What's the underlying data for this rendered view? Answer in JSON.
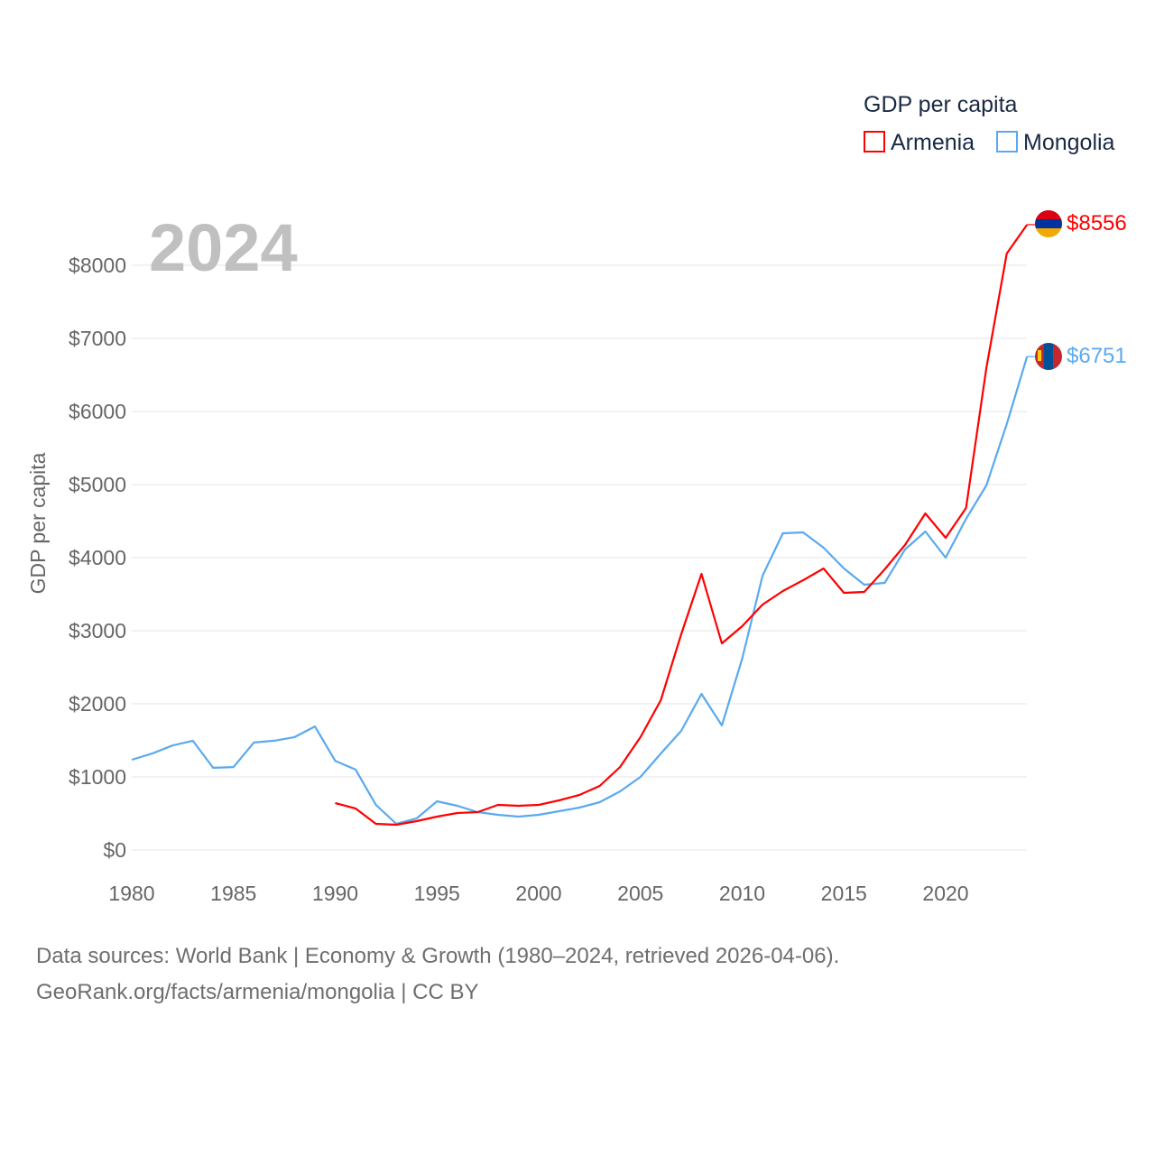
{
  "chart_data": {
    "type": "line",
    "title": "GDP per capita",
    "ylabel": "GDP per capita",
    "xlabel": "",
    "year_label": "2024",
    "xlim": [
      1980,
      2024
    ],
    "ylim": [
      0,
      8800
    ],
    "x_ticks": [
      1980,
      1985,
      1990,
      1995,
      2000,
      2005,
      2010,
      2015,
      2020
    ],
    "y_ticks": [
      0,
      1000,
      2000,
      3000,
      4000,
      5000,
      6000,
      7000,
      8000
    ],
    "y_tick_labels": [
      "$0",
      "$1000",
      "$2000",
      "$3000",
      "$4000",
      "$5000",
      "$6000",
      "$7000",
      "$8000"
    ],
    "legend_placement": "top-right",
    "grid": true,
    "series": [
      {
        "name": "Armenia",
        "color": "#ff0000",
        "end_label": "$8556",
        "start_year": 1990,
        "values": [
          642,
          568,
          358,
          346,
          395,
          457,
          506,
          518,
          617,
          605,
          617,
          679,
          753,
          877,
          1136,
          1545,
          2050,
          2951,
          3778,
          2827,
          3062,
          3358,
          3543,
          3691,
          3852,
          3519,
          3531,
          3840,
          4173,
          4605,
          4272,
          4679,
          6593,
          8160,
          8556
        ]
      },
      {
        "name": "Mongolia",
        "color": "#5aa9f0",
        "end_label": "$6751",
        "start_year": 1980,
        "values": [
          1235,
          1320,
          1430,
          1495,
          1125,
          1135,
          1470,
          1495,
          1545,
          1690,
          1220,
          1100,
          617,
          358,
          432,
          667,
          605,
          518,
          481,
          457,
          481,
          531,
          580,
          654,
          802,
          1000,
          1320,
          1630,
          2136,
          1704,
          2617,
          3753,
          4333,
          4346,
          4136,
          3852,
          3630,
          3654,
          4111,
          4358,
          4000,
          4531,
          4988,
          5827,
          6751
        ]
      }
    ]
  },
  "footer": {
    "line1": "Data sources: World Bank | Economy & Growth (1980–2024, retrieved 2026-04-06).",
    "line2": "GeoRank.org/facts/armenia/mongolia | CC BY"
  }
}
